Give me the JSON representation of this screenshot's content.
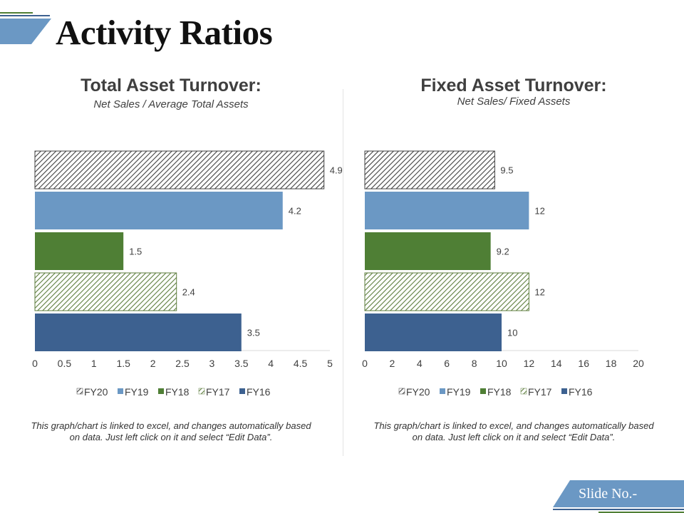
{
  "title": "Activity Ratios",
  "footer": {
    "slide_no": "Slide No.-"
  },
  "colors": {
    "fy20": "#404040",
    "fy19": "#6b98c4",
    "fy18": "#4f7f35",
    "fy17": "#5d7d3d",
    "fy16": "#3d6190",
    "accent": "#6b98c4",
    "accent_dark": "#3d6190",
    "green": "#4f7f35"
  },
  "chart_data": [
    {
      "type": "bar",
      "orientation": "horizontal",
      "title": "Total Asset Turnover:",
      "subtitle": "Net Sales / Average Total Assets",
      "categories": [
        "FY20",
        "FY19",
        "FY18",
        "FY17",
        "FY16"
      ],
      "values": [
        4.9,
        4.2,
        1.5,
        2.4,
        3.5
      ],
      "labels": [
        "4.9",
        "4.2",
        "1.5",
        "2.4",
        "3.5"
      ],
      "xlim": [
        0,
        5
      ],
      "ticks": [
        "0",
        "0.5",
        "1",
        "1.5",
        "2",
        "2.5",
        "3",
        "3.5",
        "4",
        "4.5",
        "5"
      ],
      "legend": [
        "FY20",
        "FY19",
        "FY18",
        "FY17",
        "FY16"
      ],
      "legend_position": "bottom",
      "grid": false,
      "note": "This graph/chart is linked to excel, and changes automatically based on data. Just left click on it and select “Edit Data”."
    },
    {
      "type": "bar",
      "orientation": "horizontal",
      "title": "Fixed Asset Turnover:",
      "subtitle": "Net Sales/ Fixed Assets",
      "categories": [
        "FY20",
        "FY19",
        "FY18",
        "FY17",
        "FY16"
      ],
      "values": [
        9.5,
        12,
        9.2,
        12,
        10
      ],
      "labels": [
        "9.5",
        "12",
        "9.2",
        "12",
        "10"
      ],
      "xlim": [
        0,
        20
      ],
      "ticks": [
        "0",
        "2",
        "4",
        "6",
        "8",
        "10",
        "12",
        "14",
        "16",
        "18",
        "20"
      ],
      "legend": [
        "FY20",
        "FY19",
        "FY18",
        "FY17",
        "FY16"
      ],
      "legend_position": "bottom",
      "grid": false,
      "note": "This graph/chart is linked to excel, and changes automatically based on data. Just left click on it and select “Edit Data”."
    }
  ]
}
